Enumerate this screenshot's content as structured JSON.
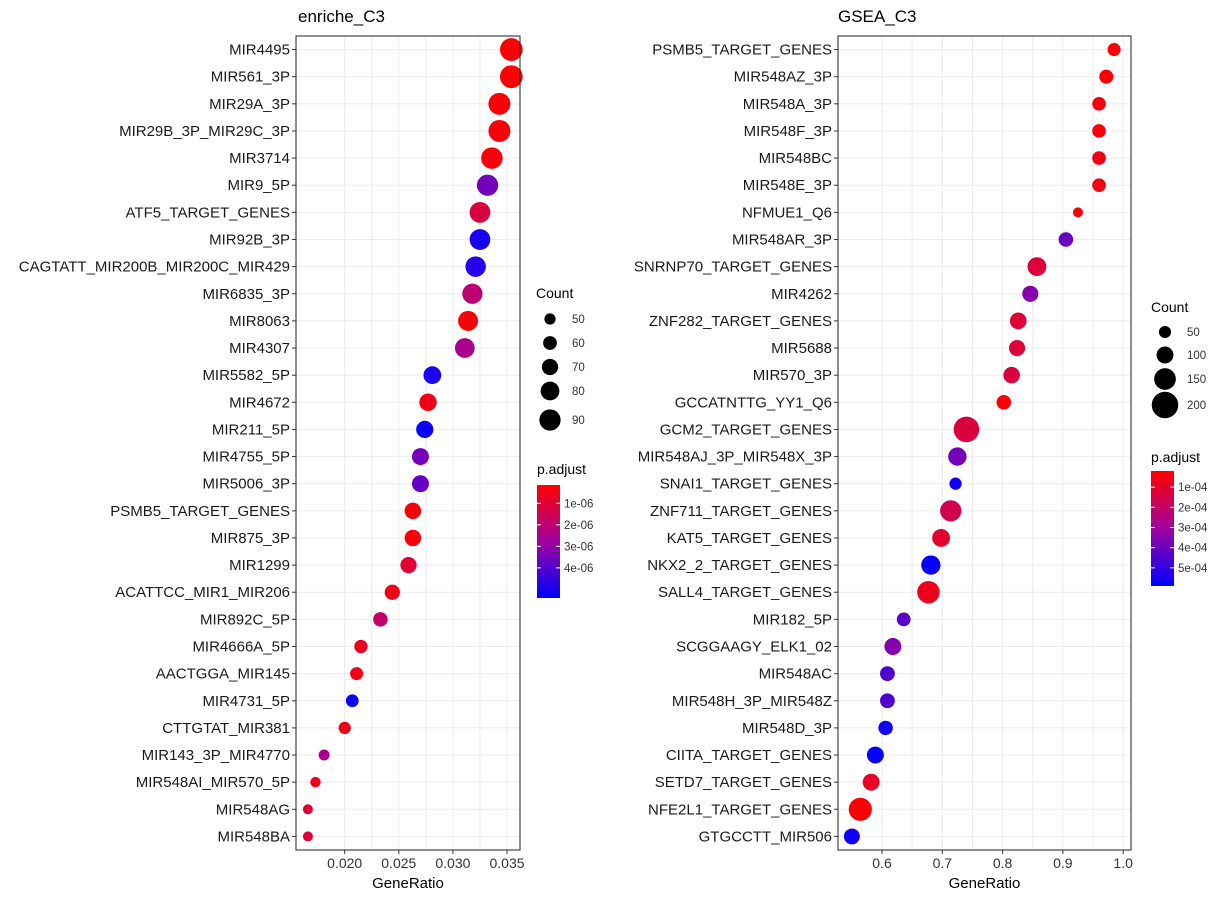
{
  "chart_data": [
    {
      "type": "scatter",
      "title": "enriche_C3",
      "xlabel": "GeneRatio",
      "ylabel": "",
      "xlim": [
        0.0155,
        0.0362
      ],
      "xticks": [
        0.02,
        0.025,
        0.03,
        0.035
      ],
      "xtick_labels": [
        "0.020",
        "0.025",
        "0.030",
        "0.035"
      ],
      "grid": true,
      "categories": [
        "MIR4495",
        "MIR561_3P",
        "MIR29A_3P",
        "MIR29B_3P_MIR29C_3P",
        "MIR3714",
        "MIR9_5P",
        "ATF5_TARGET_GENES",
        "MIR92B_3P",
        "CAGTATT_MIR200B_MIR200C_MIR429",
        "MIR6835_3P",
        "MIR8063",
        "MIR4307",
        "MIR5582_5P",
        "MIR4672",
        "MIR211_5P",
        "MIR4755_5P",
        "MIR5006_3P",
        "PSMB5_TARGET_GENES",
        "MIR875_3P",
        "MIR1299",
        "ACATTCC_MIR1_MIR206",
        "MIR892C_5P",
        "MIR4666A_5P",
        "AACTGGA_MIR145",
        "MIR4731_5P",
        "CTTGTAT_MIR381",
        "MIR143_3P_MIR4770",
        "MIR548AI_MIR570_5P",
        "MIR548AG",
        "MIR548BA"
      ],
      "gene_ratio": [
        0.0354,
        0.0354,
        0.0343,
        0.0343,
        0.0336,
        0.0332,
        0.0325,
        0.0325,
        0.0321,
        0.0318,
        0.0314,
        0.0311,
        0.0281,
        0.0277,
        0.0274,
        0.027,
        0.027,
        0.0263,
        0.0263,
        0.0259,
        0.0244,
        0.0233,
        0.0215,
        0.0211,
        0.0207,
        0.02,
        0.0181,
        0.0173,
        0.0166,
        0.0166
      ],
      "count": [
        96,
        96,
        93,
        93,
        91,
        90,
        88,
        88,
        87,
        86,
        85,
        84,
        76,
        75,
        74,
        73,
        73,
        71,
        71,
        70,
        66,
        63,
        58,
        57,
        56,
        54,
        49,
        47,
        45,
        45
      ],
      "p_adjust": [
        2e-07,
        2e-07,
        3e-07,
        3e-07,
        3e-07,
        3.5e-06,
        1.2e-06,
        5e-06,
        4.8e-06,
        2e-06,
        3e-07,
        2.5e-06,
        5e-06,
        5e-07,
        5.2e-06,
        3.5e-06,
        3.8e-06,
        3e-07,
        3e-07,
        1e-06,
        5e-07,
        1.8e-06,
        7e-07,
        5e-07,
        5.2e-06,
        5e-07,
        2.5e-06,
        6e-07,
        1e-06,
        1e-06
      ],
      "legend_count": {
        "title": "Count",
        "values": [
          50,
          60,
          70,
          80,
          90
        ]
      },
      "legend_color": {
        "title": "p.adjust",
        "ticks": [
          1e-06,
          2e-06,
          3e-06,
          4e-06
        ],
        "labels": [
          "1e-06",
          "2e-06",
          "3e-06",
          "4e-06"
        ],
        "range": [
          1.5e-07,
          5.4e-06
        ],
        "low_color": "#ff0000",
        "high_color": "#0000ff"
      },
      "legend_placement": "right"
    },
    {
      "type": "scatter",
      "title": "GSEA_C3",
      "xlabel": "GeneRatio",
      "ylabel": "",
      "xlim": [
        0.527,
        1.013
      ],
      "xticks": [
        0.6,
        0.7,
        0.8,
        0.9,
        1.0
      ],
      "xtick_labels": [
        "0.6",
        "0.7",
        "0.8",
        "0.9",
        "1.0"
      ],
      "grid": true,
      "categories": [
        "PSMB5_TARGET_GENES",
        "MIR548AZ_3P",
        "MIR548A_3P",
        "MIR548F_3P",
        "MIR548BC",
        "MIR548E_3P",
        "NFMUE1_Q6",
        "MIR548AR_3P",
        "SNRNP70_TARGET_GENES",
        "MIR4262",
        "ZNF282_TARGET_GENES",
        "MIR5688",
        "MIR570_3P",
        "GCCATNTTG_YY1_Q6",
        "GCM2_TARGET_GENES",
        "MIR548AJ_3P_MIR548X_3P",
        "SNAI1_TARGET_GENES",
        "ZNF711_TARGET_GENES",
        "KAT5_TARGET_GENES",
        "NKX2_2_TARGET_GENES",
        "SALL4_TARGET_GENES",
        "MIR182_5P",
        "SCGGAAGY_ELK1_02",
        "MIR548AC",
        "MIR548H_3P_MIR548Z",
        "MIR548D_3P",
        "CIITA_TARGET_GENES",
        "SETD7_TARGET_GENES",
        "NFE2L1_TARGET_GENES",
        "GTGCCTT_MIR506"
      ],
      "gene_ratio": [
        0.985,
        0.972,
        0.96,
        0.96,
        0.96,
        0.96,
        0.925,
        0.905,
        0.857,
        0.846,
        0.826,
        0.824,
        0.815,
        0.802,
        0.74,
        0.725,
        0.722,
        0.714,
        0.698,
        0.681,
        0.677,
        0.636,
        0.618,
        0.609,
        0.609,
        0.606,
        0.589,
        0.582,
        0.564,
        0.55
      ],
      "count": [
        60,
        70,
        66,
        66,
        66,
        66,
        28,
        75,
        120,
        92,
        98,
        92,
        96,
        76,
        190,
        115,
        52,
        145,
        110,
        125,
        158,
        68,
        100,
        78,
        78,
        74,
        100,
        100,
        165,
        90
      ],
      "p_adjust": [
        3e-05,
        3e-05,
        4e-05,
        4e-05,
        6e-05,
        5e-05,
        4e-05,
        0.0004,
        0.00012,
        0.00035,
        0.00012,
        0.00012,
        0.00013,
        3e-05,
        0.00013,
        0.00038,
        0.00056,
        0.00016,
        0.0001,
        0.00058,
        7e-05,
        0.00043,
        0.00035,
        0.00045,
        0.00045,
        0.00056,
        0.00058,
        9e-05,
        3e-05,
        0.00056
      ],
      "legend_count": {
        "title": "Count",
        "values": [
          50,
          100,
          150,
          200
        ]
      },
      "legend_color": {
        "title": "p.adjust",
        "ticks": [
          0.0001,
          0.0002,
          0.0003,
          0.0004,
          0.0005
        ],
        "labels": [
          "1e-04",
          "2e-04",
          "3e-04",
          "4e-04",
          "5e-04"
        ],
        "range": [
          2e-05,
          0.00059
        ],
        "low_color": "#ff0000",
        "high_color": "#0000ff"
      },
      "legend_placement": "right"
    }
  ]
}
